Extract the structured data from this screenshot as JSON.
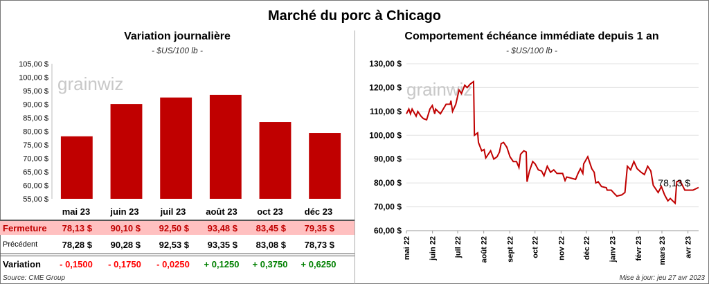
{
  "title": "Marché du porc à Chicago",
  "left": {
    "subtitle": "Variation journalière",
    "unit": "- $US/100 lb -"
  },
  "right": {
    "subtitle": "Comportement  échéance immédiate depuis 1 an",
    "unit": "- $US/100 lb -"
  },
  "watermark": "grainwiz",
  "table": {
    "months": [
      "mai 23",
      "juin 23",
      "juil 23",
      "août 23",
      "oct 23",
      "déc 23"
    ],
    "fermeture_label": "Fermeture",
    "fermeture": [
      "78,13  $",
      "90,10  $",
      "92,50  $",
      "93,48  $",
      "83,45  $",
      "79,35  $"
    ],
    "precedent_label": "Précédent",
    "precedent": [
      "78,28  $",
      "90,28  $",
      "92,53  $",
      "93,35  $",
      "83,08  $",
      "78,73  $"
    ],
    "variation_label": "Variation",
    "variation": [
      "- 0,1500",
      "- 0,1750",
      "- 0,0250",
      "+ 0,1250",
      "+ 0,3750",
      "+ 0,6250"
    ]
  },
  "source": "Source: CME Group",
  "updated": "Mise à jour: jeu 27 avr 2023",
  "colors": {
    "bar": "#c00000",
    "line": "#c00000",
    "fermeture_bg": "#ffc0c0",
    "negative": "#ff0000",
    "positive": "#008000"
  },
  "chart_data": [
    {
      "type": "bar",
      "title": "Variation journalière",
      "ylabel": "- $US/100 lb -",
      "categories": [
        "mai 23",
        "juin 23",
        "juil 23",
        "août 23",
        "oct 23",
        "déc 23"
      ],
      "values": [
        78.13,
        90.1,
        92.5,
        93.48,
        83.45,
        79.35
      ],
      "ylim": [
        55,
        105
      ],
      "yticks": [
        "55,00 $",
        "60,00 $",
        "65,00 $",
        "70,00 $",
        "75,00 $",
        "80,00 $",
        "85,00 $",
        "90,00 $",
        "95,00 $",
        "100,00 $",
        "105,00 $"
      ],
      "grid": false
    },
    {
      "type": "line",
      "title": "Comportement  échéance immédiate depuis 1 an",
      "ylabel": "- $US/100 lb -",
      "ylim": [
        60,
        130
      ],
      "xlim": [
        "2022-05-01",
        "2023-04-27"
      ],
      "grid": true,
      "yticks": [
        "60,00 $",
        "70,00 $",
        "80,00 $",
        "90,00 $",
        "100,00 $",
        "110,00 $",
        "120,00 $",
        "130,00 $"
      ],
      "xticks": [
        [
          "2022-05-01",
          "mai 22"
        ],
        [
          "2022-06-01",
          "juin 22"
        ],
        [
          "2022-07-01",
          "juil 22"
        ],
        [
          "2022-08-01",
          "août 22"
        ],
        [
          "2022-09-01",
          "sept 22"
        ],
        [
          "2022-10-01",
          "oct 22"
        ],
        [
          "2022-11-01",
          "nov 22"
        ],
        [
          "2022-12-01",
          "déc 22"
        ],
        [
          "2023-01-01",
          "janv 23"
        ],
        [
          "2023-02-01",
          "févr 23"
        ],
        [
          "2023-03-01",
          "mars 23"
        ],
        [
          "2023-04-01",
          "avr 23"
        ]
      ],
      "last_label": "78,13 $",
      "points": [
        [
          "2022-05-01",
          109
        ],
        [
          "2022-05-04",
          111
        ],
        [
          "2022-05-06",
          109
        ],
        [
          "2022-05-08",
          111
        ],
        [
          "2022-05-13",
          108
        ],
        [
          "2022-05-15",
          110
        ],
        [
          "2022-05-19",
          108
        ],
        [
          "2022-05-22",
          107
        ],
        [
          "2022-05-26",
          106.5
        ],
        [
          "2022-05-30",
          111
        ],
        [
          "2022-06-02",
          112.5
        ],
        [
          "2022-06-05",
          109
        ],
        [
          "2022-06-06",
          111
        ],
        [
          "2022-06-12",
          109
        ],
        [
          "2022-06-19",
          113
        ],
        [
          "2022-06-24",
          113
        ],
        [
          "2022-06-25",
          114.5
        ],
        [
          "2022-06-27",
          110
        ],
        [
          "2022-07-01",
          113
        ],
        [
          "2022-07-05",
          119
        ],
        [
          "2022-07-08",
          117.5
        ],
        [
          "2022-07-12",
          121
        ],
        [
          "2022-07-15",
          120
        ],
        [
          "2022-07-19",
          121.5
        ],
        [
          "2022-07-23",
          122.5
        ],
        [
          "2022-07-24",
          100
        ],
        [
          "2022-07-28",
          101
        ],
        [
          "2022-07-29",
          97
        ],
        [
          "2022-08-02",
          93.5
        ],
        [
          "2022-08-05",
          94
        ],
        [
          "2022-08-07",
          90.5
        ],
        [
          "2022-08-13",
          93.5
        ],
        [
          "2022-08-17",
          90
        ],
        [
          "2022-08-21",
          91
        ],
        [
          "2022-08-24",
          93
        ],
        [
          "2022-08-26",
          96.5
        ],
        [
          "2022-08-29",
          97
        ],
        [
          "2022-09-02",
          95
        ],
        [
          "2022-09-06",
          91
        ],
        [
          "2022-09-10",
          89
        ],
        [
          "2022-09-14",
          89
        ],
        [
          "2022-09-17",
          86.5
        ],
        [
          "2022-09-19",
          92
        ],
        [
          "2022-09-23",
          93.5
        ],
        [
          "2022-09-26",
          93
        ],
        [
          "2022-09-27",
          80.5
        ],
        [
          "2022-09-30",
          85
        ],
        [
          "2022-10-04",
          89
        ],
        [
          "2022-10-07",
          88
        ],
        [
          "2022-10-11",
          85.5
        ],
        [
          "2022-10-15",
          85
        ],
        [
          "2022-10-18",
          83
        ],
        [
          "2022-10-22",
          87
        ],
        [
          "2022-10-26",
          84.5
        ],
        [
          "2022-10-30",
          85.5
        ],
        [
          "2022-11-03",
          84
        ],
        [
          "2022-11-10",
          84
        ],
        [
          "2022-11-13",
          81
        ],
        [
          "2022-11-15",
          82.5
        ],
        [
          "2022-11-21",
          82
        ],
        [
          "2022-11-26",
          81.5
        ],
        [
          "2022-11-29",
          84
        ],
        [
          "2022-12-02",
          86
        ],
        [
          "2022-12-05",
          84
        ],
        [
          "2022-12-06",
          88
        ],
        [
          "2022-12-11",
          91
        ],
        [
          "2022-12-16",
          86
        ],
        [
          "2022-12-19",
          84.5
        ],
        [
          "2022-12-21",
          80
        ],
        [
          "2022-12-24",
          80.5
        ],
        [
          "2022-12-28",
          78.5
        ],
        [
          "2023-01-03",
          78
        ],
        [
          "2023-01-04",
          77
        ],
        [
          "2023-01-09",
          77
        ],
        [
          "2023-01-13",
          75.5
        ],
        [
          "2023-01-16",
          74.5
        ],
        [
          "2023-01-22",
          75
        ],
        [
          "2023-01-26",
          76
        ],
        [
          "2023-01-29",
          87
        ],
        [
          "2023-02-02",
          85.5
        ],
        [
          "2023-02-06",
          89
        ],
        [
          "2023-02-10",
          86
        ],
        [
          "2023-02-15",
          84.5
        ],
        [
          "2023-02-19",
          83.5
        ],
        [
          "2023-02-23",
          87
        ],
        [
          "2023-02-27",
          85
        ],
        [
          "2023-03-02",
          79
        ],
        [
          "2023-03-08",
          76
        ],
        [
          "2023-03-12",
          78.5
        ],
        [
          "2023-03-16",
          75
        ],
        [
          "2023-03-20",
          72.5
        ],
        [
          "2023-03-23",
          73.5
        ],
        [
          "2023-03-29",
          71.5
        ],
        [
          "2023-03-31",
          80.5
        ],
        [
          "2023-04-04",
          81
        ],
        [
          "2023-04-10",
          77
        ],
        [
          "2023-04-20",
          77
        ],
        [
          "2023-04-27",
          78.13
        ]
      ]
    }
  ]
}
